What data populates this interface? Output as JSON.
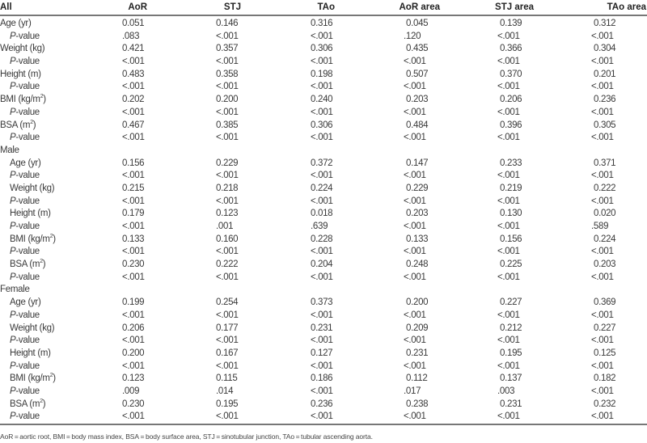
{
  "table": {
    "columns": [
      "All",
      "AoR",
      "STJ",
      "TAo",
      "AoR area",
      "STJ area",
      "TAo area"
    ],
    "groups": [
      {
        "name": "All",
        "rows": [
          {
            "label": "Age (yr)",
            "values": [
              "0.051",
              "0.146",
              "0.316",
              "0.045",
              "0.139",
              "0.312"
            ],
            "p": [
              ".083",
              "<.001",
              "<.001",
              ".120",
              "<.001",
              "<.001"
            ]
          },
          {
            "label": "Weight (kg)",
            "values": [
              "0.421",
              "0.357",
              "0.306",
              "0.435",
              "0.366",
              "0.304"
            ],
            "p": [
              "<.001",
              "<.001",
              "<.001",
              "<.001",
              "<.001",
              "<.001"
            ]
          },
          {
            "label": "Height (m)",
            "values": [
              "0.483",
              "0.358",
              "0.198",
              "0.507",
              "0.370",
              "0.201"
            ],
            "p": [
              "<.001",
              "<.001",
              "<.001",
              "<.001",
              "<.001",
              "<.001"
            ]
          },
          {
            "label": "BMI (kg/m",
            "sup": "2",
            "label_end": ")",
            "values": [
              "0.202",
              "0.200",
              "0.240",
              "0.203",
              "0.206",
              "0.236"
            ],
            "p": [
              "<.001",
              "<.001",
              "<.001",
              "<.001",
              "<.001",
              "<.001"
            ]
          },
          {
            "label": "BSA (m",
            "sup": "2",
            "label_end": ")",
            "values": [
              "0.467",
              "0.385",
              "0.306",
              "0.484",
              "0.396",
              "0.305"
            ],
            "p": [
              "<.001",
              "<.001",
              "<.001",
              "<.001",
              "<.001",
              "<.001"
            ]
          }
        ]
      },
      {
        "name": "Male",
        "rows": [
          {
            "label": "Age (yr)",
            "values": [
              "0.156",
              "0.229",
              "0.372",
              "0.147",
              "0.233",
              "0.371"
            ],
            "p": [
              "<.001",
              "<.001",
              "<.001",
              "<.001",
              "<.001",
              "<.001"
            ]
          },
          {
            "label": "Weight (kg)",
            "values": [
              "0.215",
              "0.218",
              "0.224",
              "0.229",
              "0.219",
              "0.222"
            ],
            "p": [
              "<.001",
              "<.001",
              "<.001",
              "<.001",
              "<.001",
              "<.001"
            ]
          },
          {
            "label": "Height (m)",
            "values": [
              "0.179",
              "0.123",
              "0.018",
              "0.203",
              "0.130",
              "0.020"
            ],
            "p": [
              "<.001",
              ".001",
              ".639",
              "<.001",
              "<.001",
              ".589"
            ]
          },
          {
            "label": "BMI (kg/m",
            "sup": "2",
            "label_end": ")",
            "values": [
              "0.133",
              "0.160",
              "0.228",
              "0.133",
              "0.156",
              "0.224"
            ],
            "p": [
              "<.001",
              "<.001",
              "<.001",
              "<.001",
              "<.001",
              "<.001"
            ]
          },
          {
            "label": "BSA (m",
            "sup": "2",
            "label_end": ")",
            "values": [
              "0.230",
              "0.222",
              "0.204",
              "0.248",
              "0.225",
              "0.203"
            ],
            "p": [
              "<.001",
              "<.001",
              "<.001",
              "<.001",
              "<.001",
              "<.001"
            ]
          }
        ]
      },
      {
        "name": "Female",
        "rows": [
          {
            "label": "Age (yr)",
            "values": [
              "0.199",
              "0.254",
              "0.373",
              "0.200",
              "0.227",
              "0.369"
            ],
            "p": [
              "<.001",
              "<.001",
              "<.001",
              "<.001",
              "<.001",
              "<.001"
            ]
          },
          {
            "label": "Weight (kg)",
            "values": [
              "0.206",
              "0.177",
              "0.231",
              "0.209",
              "0.212",
              "0.227"
            ],
            "p": [
              "<.001",
              "<.001",
              "<.001",
              "<.001",
              "<.001",
              "<.001"
            ]
          },
          {
            "label": "Height (m)",
            "values": [
              "0.200",
              "0.167",
              "0.127",
              "0.231",
              "0.195",
              "0.125"
            ],
            "p": [
              "<.001",
              "<.001",
              "<.001",
              "<.001",
              "<.001",
              "<.001"
            ]
          },
          {
            "label": "BMI (kg/m",
            "sup": "2",
            "label_end": ")",
            "values": [
              "0.123",
              "0.115",
              "0.186",
              "0.112",
              "0.137",
              "0.182"
            ],
            "p": [
              ".009",
              ".014",
              "<.001",
              ".017",
              ".003",
              "<.001"
            ]
          },
          {
            "label": "BSA (m",
            "sup": "2",
            "label_end": ")",
            "values": [
              "0.230",
              "0.195",
              "0.236",
              "0.238",
              "0.231",
              "0.232"
            ],
            "p": [
              "<.001",
              "<.001",
              "<.001",
              "<.001",
              "<.001",
              "<.001"
            ]
          }
        ]
      }
    ],
    "p_label_italic": "P",
    "p_label_rest": "-value"
  },
  "footnote": "AoR = aortic root, BMI = body mass index, BSA = body surface area, STJ = sinotubular junction, TAo = tubular ascending aorta."
}
